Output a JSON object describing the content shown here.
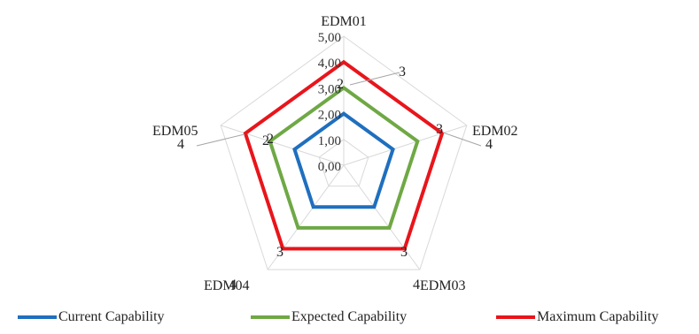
{
  "chart_data": {
    "type": "radar",
    "categories": [
      "EDM01",
      "EDM02",
      "EDM03",
      "EDM04",
      "EDM05"
    ],
    "rlim": [
      0,
      5
    ],
    "ticks": [
      "0,00",
      "1,00",
      "2,00",
      "3,00",
      "4,00",
      "5,00"
    ],
    "grid": true,
    "legend_position": "bottom",
    "series": [
      {
        "name": "Current Capability",
        "values": [
          2,
          2,
          2,
          2,
          2
        ],
        "color": "#1f6fbf"
      },
      {
        "name": "Expected Capability",
        "values": [
          3,
          3,
          3,
          3,
          3
        ],
        "color": "#6fa845"
      },
      {
        "name": "Maximum Capability",
        "values": [
          4,
          4,
          4,
          4,
          4
        ],
        "color": "#e8151b"
      }
    ],
    "annotations": [
      {
        "category": "EDM01",
        "labels": [
          "3"
        ]
      },
      {
        "category": "EDM02",
        "labels": [
          "3",
          "4"
        ]
      },
      {
        "category": "EDM03",
        "labels": [
          "3",
          "4"
        ]
      },
      {
        "category": "EDM04",
        "labels": [
          "3",
          "4"
        ]
      },
      {
        "category": "EDM05",
        "labels": [
          "2",
          "4"
        ]
      }
    ],
    "center_labels": [
      {
        "category": "EDM01",
        "label": "2"
      },
      {
        "category": "EDM05",
        "label": "2"
      }
    ]
  }
}
